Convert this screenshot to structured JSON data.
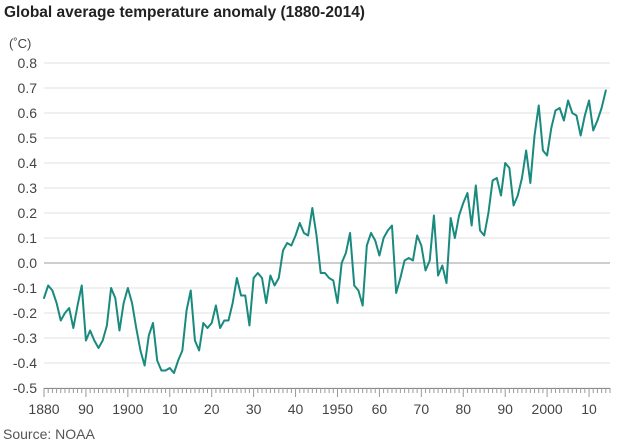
{
  "title": "Global average temperature anomaly (1880-2014)",
  "source": "Source: NOAA",
  "chart_data": {
    "type": "line",
    "title": "Global average temperature anomaly (1880-2014)",
    "ylabel": "(˚C)",
    "xlabel": "",
    "xlim": [
      1880,
      2015
    ],
    "ylim": [
      -0.5,
      0.8
    ],
    "yticks": [
      -0.5,
      -0.4,
      -0.3,
      -0.2,
      -0.1,
      0.0,
      0.1,
      0.2,
      0.3,
      0.4,
      0.5,
      0.6,
      0.7,
      0.8
    ],
    "ytick_labels": [
      "-0.5",
      "-0.4",
      "-0.3",
      "-0.2",
      "-0.1",
      "0.0",
      "0.1",
      "0.2",
      "0.3",
      "0.4",
      "0.5",
      "0.6",
      "0.7",
      "0.8"
    ],
    "xticks": [
      1880,
      1890,
      1900,
      1910,
      1920,
      1930,
      1940,
      1950,
      1960,
      1970,
      1980,
      1990,
      2000,
      2010
    ],
    "xtick_labels": [
      "1880",
      "90",
      "1900",
      "10",
      "20",
      "30",
      "40",
      "1950",
      "60",
      "70",
      "80",
      "90",
      "2000",
      "10"
    ],
    "grid": "horizontal",
    "zero_line": true,
    "series_color": "#1a8a7f",
    "grid_color": "#e2e2e2",
    "zero_line_color": "#bdbdbd",
    "series": [
      {
        "x": [
          1880,
          1881,
          1882,
          1883,
          1884,
          1885,
          1886,
          1887,
          1888,
          1889,
          1890,
          1891,
          1892,
          1893,
          1894,
          1895,
          1896,
          1897,
          1898,
          1899,
          1900,
          1901,
          1902,
          1903,
          1904,
          1905,
          1906,
          1907,
          1908,
          1909,
          1910,
          1911,
          1912,
          1913,
          1914,
          1915,
          1916,
          1917,
          1918,
          1919,
          1920,
          1921,
          1922,
          1923,
          1924,
          1925,
          1926,
          1927,
          1928,
          1929,
          1930,
          1931,
          1932,
          1933,
          1934,
          1935,
          1936,
          1937,
          1938,
          1939,
          1940,
          1941,
          1942,
          1943,
          1944,
          1945,
          1946,
          1947,
          1948,
          1949,
          1950,
          1951,
          1952,
          1953,
          1954,
          1955,
          1956,
          1957,
          1958,
          1959,
          1960,
          1961,
          1962,
          1963,
          1964,
          1965,
          1966,
          1967,
          1968,
          1969,
          1970,
          1971,
          1972,
          1973,
          1974,
          1975,
          1976,
          1977,
          1978,
          1979,
          1980,
          1981,
          1982,
          1983,
          1984,
          1985,
          1986,
          1987,
          1988,
          1989,
          1990,
          1991,
          1992,
          1993,
          1994,
          1995,
          1996,
          1997,
          1998,
          1999,
          2000,
          2001,
          2002,
          2003,
          2004,
          2005,
          2006,
          2007,
          2008,
          2009,
          2010,
          2011,
          2012,
          2013,
          2014
        ],
        "values": [
          -0.14,
          -0.09,
          -0.11,
          -0.16,
          -0.23,
          -0.2,
          -0.18,
          -0.26,
          -0.17,
          -0.09,
          -0.31,
          -0.27,
          -0.31,
          -0.34,
          -0.31,
          -0.25,
          -0.1,
          -0.14,
          -0.27,
          -0.16,
          -0.1,
          -0.16,
          -0.26,
          -0.35,
          -0.41,
          -0.29,
          -0.24,
          -0.39,
          -0.43,
          -0.43,
          -0.42,
          -0.44,
          -0.39,
          -0.35,
          -0.19,
          -0.11,
          -0.31,
          -0.35,
          -0.24,
          -0.26,
          -0.24,
          -0.17,
          -0.26,
          -0.23,
          -0.23,
          -0.16,
          -0.06,
          -0.13,
          -0.13,
          -0.25,
          -0.06,
          -0.04,
          -0.06,
          -0.16,
          -0.05,
          -0.09,
          -0.06,
          0.05,
          0.08,
          0.07,
          0.11,
          0.16,
          0.12,
          0.11,
          0.22,
          0.11,
          -0.04,
          -0.04,
          -0.06,
          -0.07,
          -0.16,
          0.0,
          0.04,
          0.12,
          -0.09,
          -0.11,
          -0.17,
          0.07,
          0.12,
          0.09,
          0.03,
          0.1,
          0.13,
          0.15,
          -0.12,
          -0.06,
          0.01,
          0.02,
          0.01,
          0.11,
          0.07,
          -0.03,
          0.01,
          0.19,
          -0.05,
          -0.01,
          -0.08,
          0.18,
          0.1,
          0.19,
          0.24,
          0.28,
          0.15,
          0.31,
          0.13,
          0.11,
          0.2,
          0.33,
          0.34,
          0.27,
          0.4,
          0.38,
          0.23,
          0.27,
          0.34,
          0.45,
          0.32,
          0.51,
          0.63,
          0.45,
          0.43,
          0.54,
          0.61,
          0.62,
          0.57,
          0.65,
          0.6,
          0.59,
          0.51,
          0.59,
          0.65,
          0.53,
          0.57,
          0.62,
          0.69
        ]
      }
    ]
  }
}
